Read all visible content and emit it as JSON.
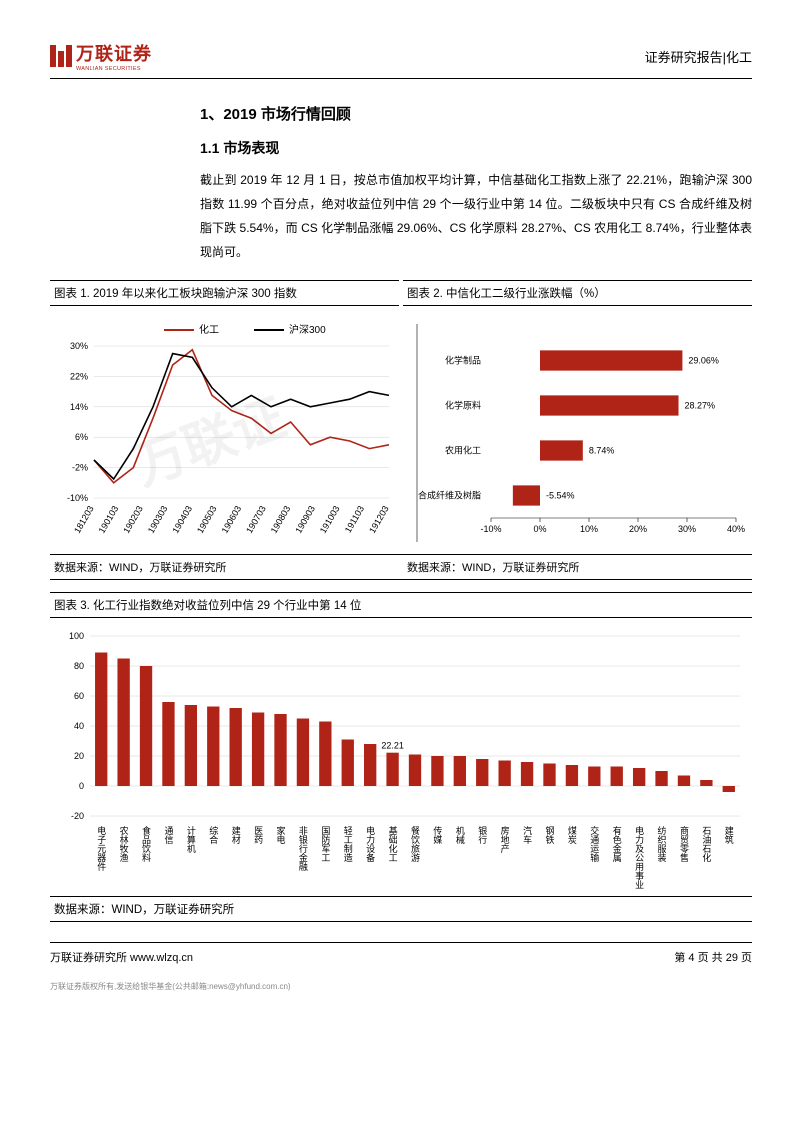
{
  "header": {
    "logo_cn": "万联证券",
    "logo_en": "WANLIAN SECURITIES",
    "right": "证券研究报告|化工"
  },
  "section": {
    "h1": "1、2019 市场行情回顾",
    "h2": "1.1 市场表现",
    "body": "截止到 2019 年 12 月 1 日，按总市值加权平均计算，中信基础化工指数上涨了 22.21%，跑输沪深 300 指数 11.99 个百分点，绝对收益位列中信 29 个一级行业中第 14 位。二级板块中只有 CS 合成纤维及树脂下跌 5.54%，而 CS 化学制品涨幅 29.06%、CS 化学原料 28.27%、CS 农用化工 8.74%，行业整体表现尚可。"
  },
  "chart1": {
    "title": "图表 1. 2019 年以来化工板块跑输沪深 300 指数",
    "source": "数据来源：WIND，万联证券研究所",
    "legend": [
      "化工",
      "沪深300"
    ],
    "colors": {
      "s1": "#b02418",
      "s2": "#000000",
      "grid": "#d0d0d0"
    },
    "ymin": -10,
    "ymax": 30,
    "ystep": 8,
    "yticks": [
      -10,
      -2,
      6,
      14,
      22,
      30
    ],
    "xlabels": [
      "181203",
      "190103",
      "190203",
      "190303",
      "190403",
      "190503",
      "190603",
      "190703",
      "190803",
      "190903",
      "191003",
      "191103",
      "191203"
    ],
    "series1": [
      0,
      -6,
      -2,
      11,
      25,
      29,
      17,
      13,
      11,
      7,
      10,
      4,
      6,
      5,
      3,
      4
    ],
    "series2": [
      0,
      -5,
      3,
      14,
      28,
      27,
      19,
      14,
      17,
      14,
      16,
      14,
      15,
      16,
      18,
      17
    ]
  },
  "chart2": {
    "title": "图表 2. 中信化工二级行业涨跌幅（%）",
    "source": "数据来源：WIND，万联证券研究所",
    "color": "#b02418",
    "categories": [
      "化学制品",
      "化学原料",
      "农用化工",
      "合成纤维及树脂"
    ],
    "values": [
      29.06,
      28.27,
      8.74,
      -5.54
    ],
    "value_labels": [
      "29.06%",
      "28.27%",
      "8.74%",
      "-5.54%"
    ],
    "xmin": -10,
    "xmax": 40,
    "xstep": 10,
    "xticks": [
      -10,
      0,
      10,
      20,
      30,
      40
    ],
    "xtick_labels": [
      "-10%",
      "0%",
      "10%",
      "20%",
      "30%",
      "40%"
    ]
  },
  "chart3": {
    "title": "图表 3.  化工行业指数绝对收益位列中信 29 个行业中第 14 位",
    "source": "数据来源：WIND，万联证券研究所",
    "color": "#b02418",
    "highlight_label": "22.21",
    "highlight_index": 13,
    "ymin": -20,
    "ymax": 100,
    "ystep": 20,
    "yticks": [
      -20,
      0,
      20,
      40,
      60,
      80,
      100
    ],
    "categories": [
      "电子元器件",
      "农林牧渔",
      "食品饮料",
      "通信",
      "计算机",
      "综合",
      "建材",
      "医药",
      "家电",
      "非银行金融",
      "国防军工",
      "轻工制造",
      "电力设备",
      "基础化工",
      "餐饮旅游",
      "传媒",
      "机械",
      "银行",
      "房地产",
      "汽车",
      "钢铁",
      "煤炭",
      "交通运输",
      "有色金属",
      "电力及公用事业",
      "纺织服装",
      "商贸零售",
      "石油石化",
      "建筑"
    ],
    "values": [
      89,
      85,
      80,
      56,
      54,
      53,
      52,
      49,
      48,
      45,
      43,
      31,
      28,
      22.21,
      21,
      20,
      20,
      18,
      17,
      16,
      15,
      14,
      13,
      13,
      12,
      10,
      7,
      4,
      -4
    ]
  },
  "footer": {
    "left": "万联证券研究所  www.wlzq.cn",
    "right": "第 4 页 共 29 页"
  },
  "disclaimer": "万联证券版权所有,发送给银华基金(公共邮箱:news@yhfund.com.cn)"
}
